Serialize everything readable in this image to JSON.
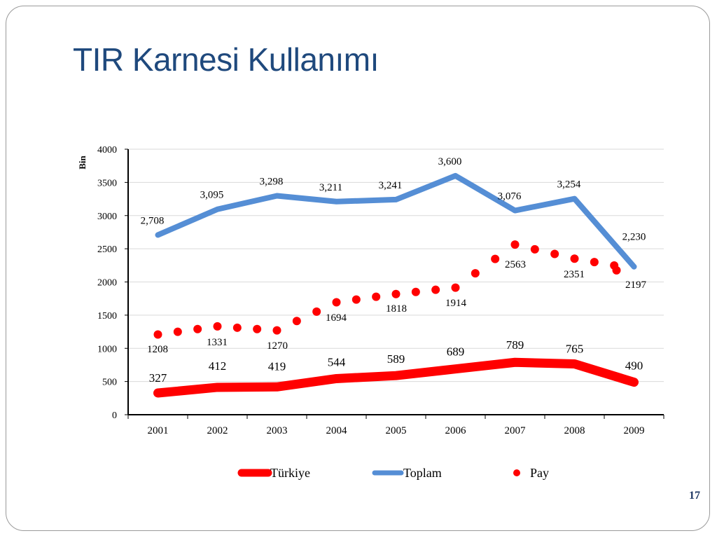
{
  "slide": {
    "title": "TIR Karnesi Kullanımı",
    "page_number": "17"
  },
  "chart_data": {
    "type": "line",
    "title": "",
    "xlabel": "",
    "ylabel": "Bin",
    "ylim": [
      0,
      4000
    ],
    "y_ticks": [
      0,
      500,
      1000,
      1500,
      2000,
      2500,
      3000,
      3500,
      4000
    ],
    "categories": [
      "2001",
      "2002",
      "2003",
      "2004",
      "2005",
      "2006",
      "2007",
      "2008",
      "2009"
    ],
    "grid": true,
    "legend_position": "bottom",
    "series": [
      {
        "name": "Türkiye",
        "style": "thick-line",
        "color": "#ff0000",
        "values": [
          327,
          412,
          419,
          544,
          589,
          689,
          789,
          765,
          490
        ],
        "labels": [
          "327",
          "412",
          "419",
          "544",
          "589",
          "689",
          "789",
          "765",
          "490"
        ]
      },
      {
        "name": "Toplam",
        "style": "line",
        "color": "#558ed5",
        "values": [
          2708,
          3095,
          3298,
          3211,
          3241,
          3600,
          3076,
          3254,
          2230
        ],
        "labels": [
          "2,708",
          "3,095",
          "3,298",
          "3,211",
          "3,241",
          "3,600",
          "3,076",
          "3,254",
          "2,230"
        ]
      },
      {
        "name": "Pay",
        "style": "dotted",
        "color": "#ff0000",
        "values": [
          1208,
          1331,
          1270,
          1694,
          1818,
          1914,
          2563,
          2351,
          2197
        ],
        "labels": [
          "1208",
          "1331",
          "1270",
          "1694",
          "1818",
          "1914",
          "2563",
          "2351",
          "2197"
        ]
      }
    ]
  }
}
